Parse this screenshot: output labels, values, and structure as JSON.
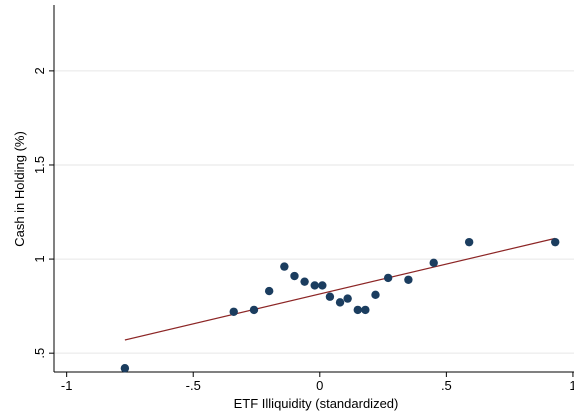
{
  "chart_data": {
    "type": "scatter",
    "title": "",
    "xlabel": "ETF Illiquidity (standardized)",
    "ylabel": "Cash in Holding (%)",
    "xlim": [
      -1.05,
      1.02
    ],
    "ylim": [
      0.4,
      2.35
    ],
    "x_ticks": [
      {
        "value": -1,
        "label": "-1"
      },
      {
        "value": -0.5,
        "label": "-.5"
      },
      {
        "value": 0,
        "label": "0"
      },
      {
        "value": 0.5,
        "label": ".5"
      },
      {
        "value": 1,
        "label": "1"
      }
    ],
    "y_ticks": [
      {
        "value": 0.5,
        "label": ".5"
      },
      {
        "value": 1,
        "label": "1"
      },
      {
        "value": 1.5,
        "label": "1.5"
      },
      {
        "value": 2,
        "label": "2"
      }
    ],
    "grid": "horizontal",
    "legend": "none",
    "colors": {
      "marker": "#1b3d5f",
      "fit_line": "#8c2525",
      "grid": "#e6e6e6",
      "axis": "#000000"
    },
    "points": [
      {
        "x": -0.77,
        "y": 0.42
      },
      {
        "x": -0.34,
        "y": 0.72
      },
      {
        "x": -0.26,
        "y": 0.73
      },
      {
        "x": -0.2,
        "y": 0.83
      },
      {
        "x": -0.14,
        "y": 0.96
      },
      {
        "x": -0.1,
        "y": 0.91
      },
      {
        "x": -0.06,
        "y": 0.88
      },
      {
        "x": -0.02,
        "y": 0.86
      },
      {
        "x": 0.01,
        "y": 0.86
      },
      {
        "x": 0.04,
        "y": 0.8
      },
      {
        "x": 0.08,
        "y": 0.77
      },
      {
        "x": 0.11,
        "y": 0.79
      },
      {
        "x": 0.15,
        "y": 0.73
      },
      {
        "x": 0.18,
        "y": 0.73
      },
      {
        "x": 0.22,
        "y": 0.81
      },
      {
        "x": 0.27,
        "y": 0.9
      },
      {
        "x": 0.35,
        "y": 0.89
      },
      {
        "x": 0.45,
        "y": 0.98
      },
      {
        "x": 0.59,
        "y": 1.09
      },
      {
        "x": 0.93,
        "y": 1.09
      }
    ],
    "fit_line": {
      "x": [
        -0.77,
        0.93
      ],
      "y": [
        0.57,
        1.11
      ]
    }
  }
}
